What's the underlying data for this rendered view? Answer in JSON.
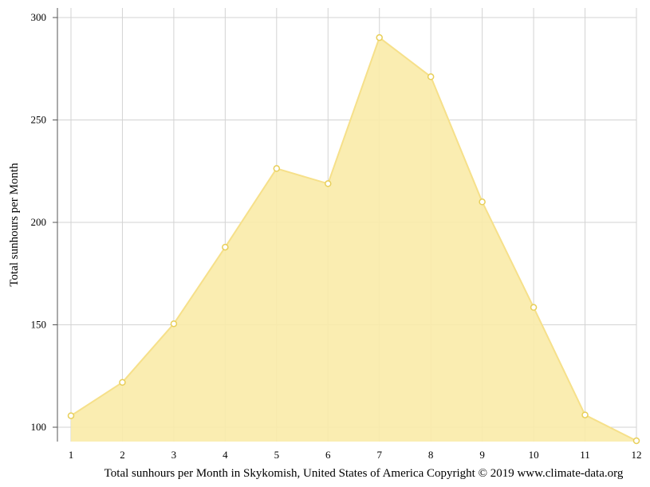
{
  "chart_data": {
    "type": "area",
    "xlabel": "Total sunhours per Month in Skykomish, United States of America Copyright © 2019 www.climate-data.org",
    "ylabel": "Total sunhours per Month",
    "categories": [
      "1",
      "2",
      "3",
      "4",
      "5",
      "6",
      "7",
      "8",
      "9",
      "10",
      "11",
      "12"
    ],
    "series": [
      {
        "values": [
          105.6,
          121.9,
          150.5,
          187.9,
          226.3,
          218.9,
          290.2,
          271.1,
          210.0,
          158.5,
          106.0,
          93.4
        ]
      }
    ],
    "yticks": [
      100,
      150,
      200,
      250,
      300
    ],
    "ylim": [
      93,
      304
    ],
    "grid": true,
    "colors": {
      "fill": "#f9eba8",
      "line": "#f6e08a",
      "marker_stroke": "#e8cf5a",
      "marker_fill": "#ffffff",
      "grid": "#d3d3d3",
      "axis": "#555555"
    }
  }
}
